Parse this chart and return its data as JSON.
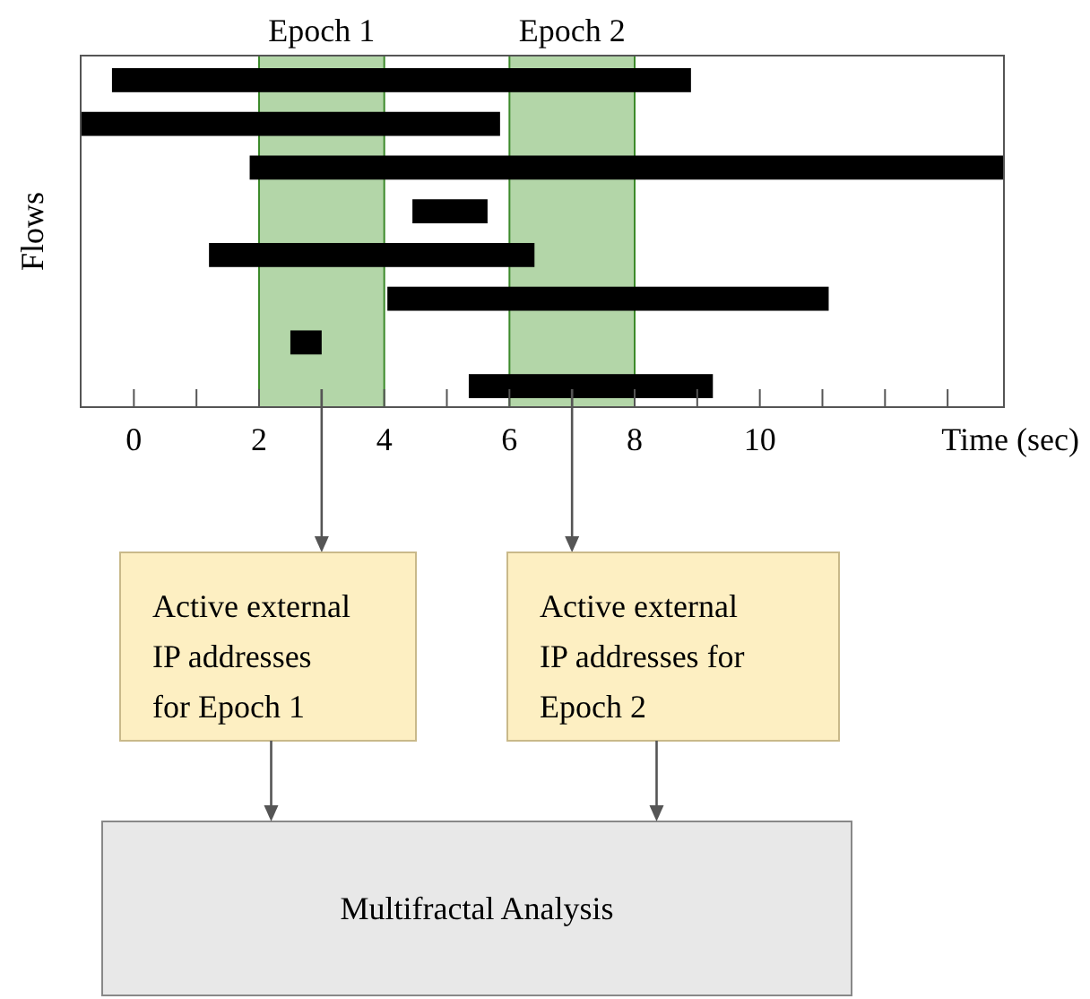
{
  "chart_data": {
    "type": "bar",
    "orientation": "horizontal",
    "ylabel": "Flows",
    "xlabel": "Time (sec)",
    "categories": [
      null,
      null,
      null,
      null,
      null,
      null,
      null,
      null
    ],
    "base": [
      -0.35,
      -0.85,
      1.85,
      4.45,
      1.2,
      4.05,
      2.5,
      5.35
    ],
    "values": [
      9.25,
      6.7,
      12.05,
      1.2,
      5.2,
      7.05,
      0.5,
      3.9
    ],
    "color": "#000000",
    "xlim": [
      -0.85,
      13.9
    ],
    "xticks": [
      0,
      {
        "value": 1,
        "label": null
      },
      2,
      {
        "value": 3,
        "label": null
      },
      4,
      {
        "value": 5,
        "label": null
      },
      6,
      {
        "value": 7,
        "label": null
      },
      8,
      {
        "value": 9,
        "label": null
      },
      10,
      {
        "value": 11,
        "label": null
      },
      {
        "value": 12,
        "label": null
      },
      {
        "value": 13,
        "label": null
      }
    ],
    "tick_labels": "x",
    "bands": [
      {
        "axis": "x",
        "from": 2,
        "to": 4,
        "label": "Epoch 1",
        "color": "#b3d6a8"
      },
      {
        "axis": "x",
        "from": 6,
        "to": 8,
        "label": "Epoch 2",
        "color": "#b3d6a8"
      }
    ],
    "annotations": [
      "Active external IP addresses for Epoch 1",
      "Active external IP addresses for Epoch 2",
      "Multifractal Analysis"
    ]
  }
}
